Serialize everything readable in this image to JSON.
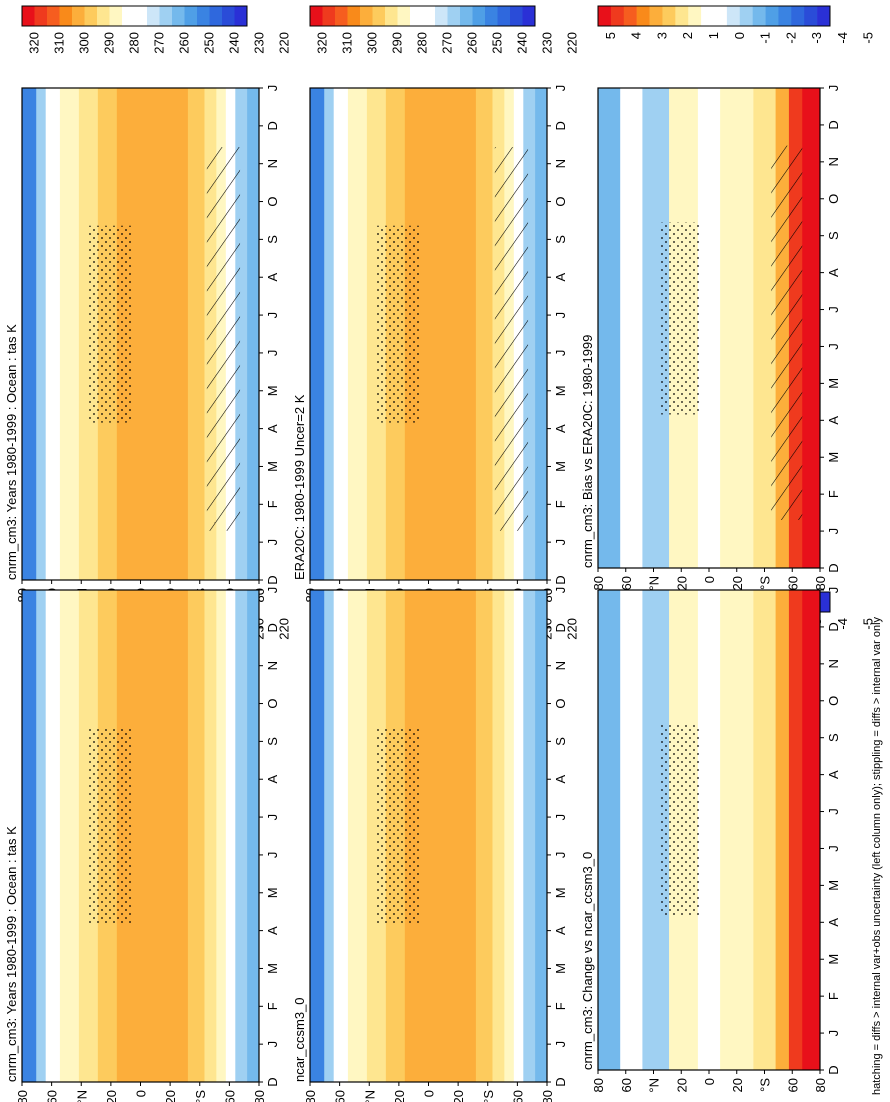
{
  "figure": {
    "footnote": "hatching = diffs > internal var+obs uncertainty (left column only); stippling = diffs > internal var only"
  },
  "scales": {
    "abs": {
      "labels": [
        "320",
        "310",
        "300",
        "290",
        "280",
        "270",
        "260",
        "250",
        "240",
        "230",
        "220"
      ],
      "colors": [
        "#e8101a",
        "#ef3a1e",
        "#f65d1f",
        "#f98a1a",
        "#fcae3b",
        "#fdcb5d",
        "#fee690",
        "#fff7c2",
        "#ffffff",
        "#ffffff",
        "#cde6f8",
        "#9fd0f2",
        "#74b9ec",
        "#4f9fe6",
        "#3a83e2",
        "#2f68dd",
        "#2a4cd8",
        "#2a30d6"
      ]
    },
    "diff": {
      "labels": [
        "5",
        "4",
        "3",
        "2",
        "1",
        "0",
        "-1",
        "-2",
        "-3",
        "-4",
        "-5"
      ],
      "colors": [
        "#e8101a",
        "#ef3a1e",
        "#f65d1f",
        "#f98a1a",
        "#fcae3b",
        "#fdcb5d",
        "#fee690",
        "#fff7c2",
        "#ffffff",
        "#ffffff",
        "#cde6f8",
        "#9fd0f2",
        "#74b9ec",
        "#4f9fe6",
        "#3a83e2",
        "#2f68dd",
        "#2a4cd8",
        "#2a30d6"
      ]
    }
  },
  "panels": [
    {
      "id": "p1",
      "title": "cnrm_cm3: Years 1980-1999 : Ocean : tas K",
      "scale": "abs"
    },
    {
      "id": "p2",
      "title": "ERA20C: 1980-1999 Uncer=2 K",
      "scale": "abs"
    },
    {
      "id": "p3",
      "title": "cnrm_cm3: Bias vs ERA20C: 1980-1999",
      "scale": "diff"
    },
    {
      "id": "p4",
      "title": "cnrm_cm3: Years 1980-1999 : Ocean : tas K",
      "scale": "abs"
    },
    {
      "id": "p5",
      "title": "ncar_ccsm3_0",
      "scale": "abs"
    },
    {
      "id": "p6",
      "title": "cnrm_cm3: Change vs ncar_ccsm3_0",
      "scale": "diff"
    }
  ],
  "chart_data": {
    "type": "heatmap",
    "x_ticks": [
      "J",
      "F",
      "M",
      "A",
      "M",
      "J",
      "J",
      "A",
      "S",
      "O",
      "N",
      "D",
      "J"
    ],
    "y_ticks": [
      "D",
      "J",
      "F",
      "M",
      "A",
      "M",
      "J",
      "J",
      "A",
      "S",
      "O",
      "N",
      "D",
      "J"
    ],
    "lat_ticks": [
      "80",
      "60",
      "°N",
      "20",
      "0",
      "20",
      "°S",
      "60",
      "80"
    ]
  }
}
